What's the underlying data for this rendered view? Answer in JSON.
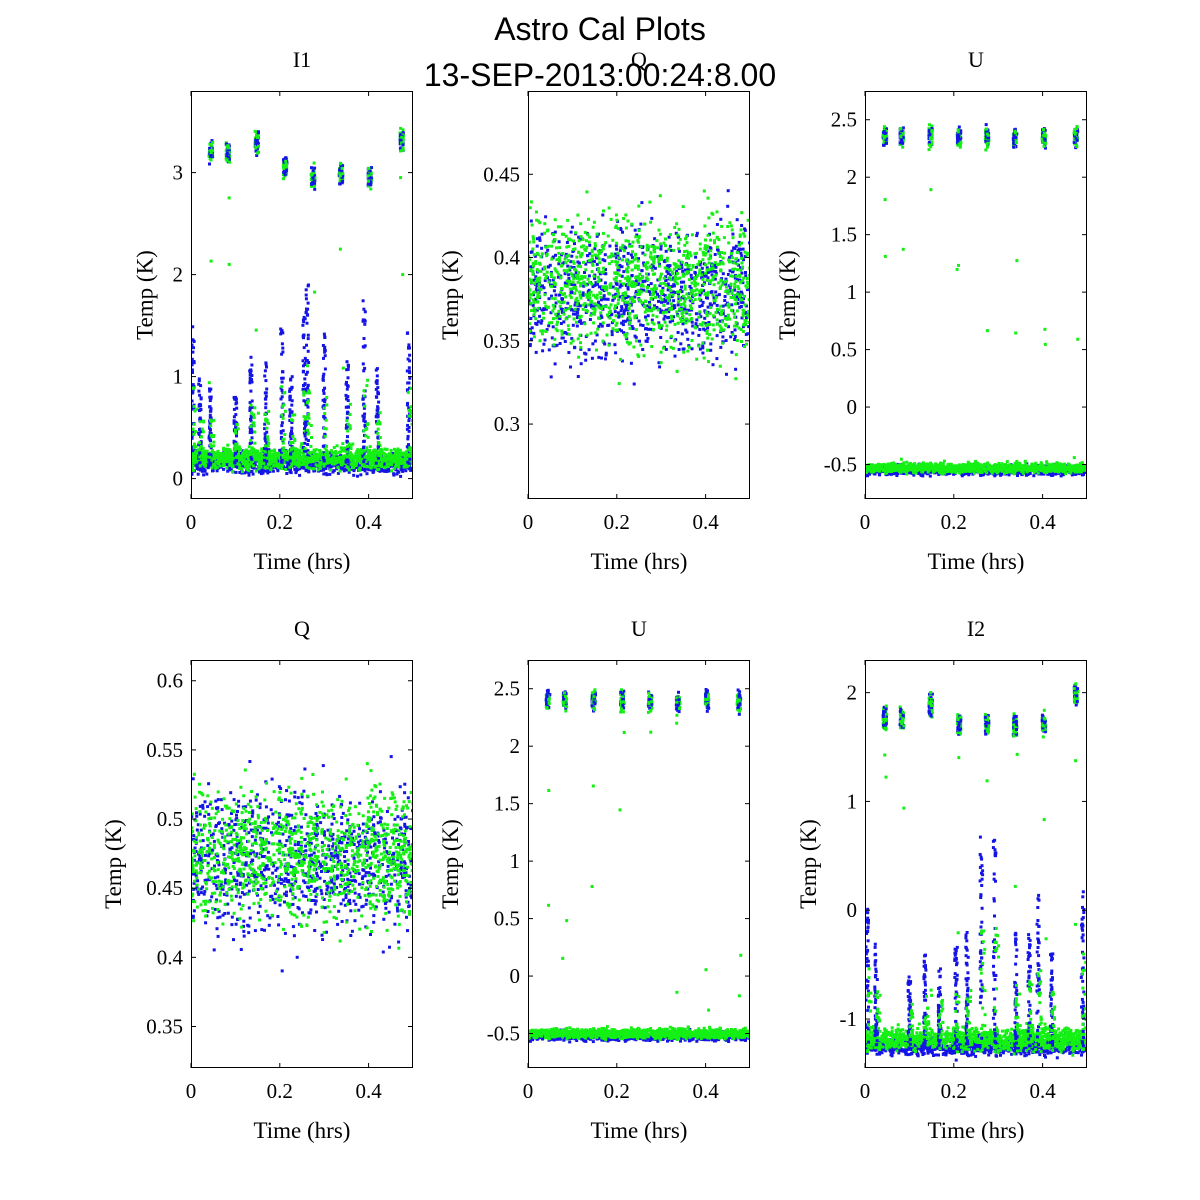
{
  "figure": {
    "title": "Astro Cal Plots",
    "subtitle": "13-SEP-2013:00:24:8.00",
    "colors": {
      "series_a": "#1414e6",
      "series_b": "#14f014",
      "axes": "#000000",
      "background": "#ffffff"
    }
  },
  "chart_data": [
    {
      "type": "scatter",
      "title": "I1",
      "xlabel": "Time (hrs)",
      "ylabel": "Temp (K)",
      "xlim": [
        0,
        0.5
      ],
      "ylim": [
        -0.2,
        3.8
      ],
      "xticks": [
        0,
        0.2,
        0.4
      ],
      "xtick_labels": [
        "0",
        "0.2",
        "0.4"
      ],
      "yticks": [
        0,
        1,
        2,
        3
      ],
      "ytick_labels": [
        "0",
        "1",
        "2",
        "3"
      ],
      "legend": "none",
      "pattern": {
        "base": 0.15,
        "noise": 0.1,
        "base_b": 0.2,
        "noise_b": 0.1,
        "cal_times": [
          0.045,
          0.083,
          0.148,
          0.212,
          0.275,
          0.338,
          0.403,
          0.475
        ],
        "cal_levels": [
          3.2,
          3.2,
          3.3,
          3.05,
          2.95,
          2.98,
          2.95,
          3.3
        ],
        "cal_spread": 0.1,
        "spikes": [
          [
            0.005,
            1.5
          ],
          [
            0.02,
            1.0
          ],
          [
            0.043,
            0.9
          ],
          [
            0.1,
            0.8
          ],
          [
            0.135,
            1.2
          ],
          [
            0.168,
            1.2
          ],
          [
            0.205,
            1.5
          ],
          [
            0.225,
            1.0
          ],
          [
            0.255,
            1.6
          ],
          [
            0.262,
            1.95
          ],
          [
            0.3,
            1.45
          ],
          [
            0.352,
            1.2
          ],
          [
            0.39,
            1.75
          ],
          [
            0.42,
            1.1
          ],
          [
            0.49,
            1.45
          ]
        ]
      }
    },
    {
      "type": "scatter",
      "title": "Q",
      "xlabel": "Time (hrs)",
      "ylabel": "Temp (K)",
      "xlim": [
        0,
        0.5
      ],
      "ylim": [
        0.255,
        0.5
      ],
      "xticks": [
        0,
        0.2,
        0.4
      ],
      "xtick_labels": [
        "0",
        "0.2",
        "0.4"
      ],
      "yticks": [
        0.3,
        0.35,
        0.4,
        0.45
      ],
      "ytick_labels": [
        "0.3",
        "0.35",
        "0.4",
        "0.45"
      ],
      "legend": "none",
      "pattern": {
        "base": 0.38,
        "noise": 0.04,
        "base_b": 0.385,
        "noise_b": 0.038
      }
    },
    {
      "type": "scatter",
      "title": "U",
      "xlabel": "Time (hrs)",
      "ylabel": "Temp (K)",
      "xlim": [
        0,
        0.5
      ],
      "ylim": [
        -0.8,
        2.75
      ],
      "xticks": [
        0,
        0.2,
        0.4
      ],
      "xtick_labels": [
        "0",
        "0.2",
        "0.4"
      ],
      "yticks": [
        -0.5,
        0,
        0.5,
        1,
        1.5,
        2,
        2.5
      ],
      "ytick_labels": [
        "-0.5",
        "0",
        "0.5",
        "1",
        "1.5",
        "2",
        "2.5"
      ],
      "legend": "none",
      "pattern": {
        "base": -0.55,
        "noise": 0.04,
        "base_b": -0.53,
        "noise_b": 0.04,
        "cal_times": [
          0.045,
          0.083,
          0.148,
          0.212,
          0.275,
          0.338,
          0.403,
          0.475
        ],
        "cal_levels": [
          2.35,
          2.35,
          2.35,
          2.35,
          2.35,
          2.33,
          2.35,
          2.35
        ],
        "cal_spread": 0.08
      }
    },
    {
      "type": "scatter",
      "title": "Q",
      "xlabel": "Time (hrs)",
      "ylabel": "Temp (K)",
      "xlim": [
        0,
        0.5
      ],
      "ylim": [
        0.32,
        0.615
      ],
      "xticks": [
        0,
        0.2,
        0.4
      ],
      "xtick_labels": [
        "0",
        "0.2",
        "0.4"
      ],
      "yticks": [
        0.35,
        0.4,
        0.45,
        0.5,
        0.55,
        0.6
      ],
      "ytick_labels": [
        "0.35",
        "0.4",
        "0.45",
        "0.5",
        "0.55",
        "0.6"
      ],
      "legend": "none",
      "pattern": {
        "base": 0.47,
        "noise": 0.05,
        "base_b": 0.475,
        "noise_b": 0.045
      }
    },
    {
      "type": "scatter",
      "title": "U",
      "xlabel": "Time (hrs)",
      "ylabel": "Temp (K)",
      "xlim": [
        0,
        0.5
      ],
      "ylim": [
        -0.8,
        2.75
      ],
      "xticks": [
        0,
        0.2,
        0.4
      ],
      "xtick_labels": [
        "0",
        "0.2",
        "0.4"
      ],
      "yticks": [
        -0.5,
        0,
        0.5,
        1,
        1.5,
        2,
        2.5
      ],
      "ytick_labels": [
        "-0.5",
        "0",
        "0.5",
        "1",
        "1.5",
        "2",
        "2.5"
      ],
      "legend": "none",
      "pattern": {
        "base": -0.52,
        "noise": 0.04,
        "base_b": -0.5,
        "noise_b": 0.04,
        "cal_times": [
          0.045,
          0.083,
          0.148,
          0.212,
          0.275,
          0.338,
          0.403,
          0.475
        ],
        "cal_levels": [
          2.4,
          2.4,
          2.4,
          2.4,
          2.4,
          2.38,
          2.4,
          2.4
        ],
        "cal_spread": 0.08
      }
    },
    {
      "type": "scatter",
      "title": "I2",
      "xlabel": "Time (hrs)",
      "ylabel": "Temp (K)",
      "xlim": [
        0,
        0.5
      ],
      "ylim": [
        -1.45,
        2.3
      ],
      "xticks": [
        0,
        0.2,
        0.4
      ],
      "xtick_labels": [
        "0",
        "0.2",
        "0.4"
      ],
      "yticks": [
        -1,
        0,
        1,
        2
      ],
      "ytick_labels": [
        "-1",
        "0",
        "1",
        "2"
      ],
      "legend": "none",
      "pattern": {
        "base": -1.25,
        "noise": 0.08,
        "base_b": -1.18,
        "noise_b": 0.1,
        "cal_times": [
          0.045,
          0.083,
          0.148,
          0.212,
          0.275,
          0.338,
          0.403,
          0.475
        ],
        "cal_levels": [
          1.75,
          1.75,
          1.9,
          1.7,
          1.7,
          1.7,
          1.7,
          2.0
        ],
        "cal_spread": 0.1,
        "spikes": [
          [
            0.005,
            0.1
          ],
          [
            0.025,
            -0.3
          ],
          [
            0.1,
            -0.6
          ],
          [
            0.135,
            -0.4
          ],
          [
            0.168,
            -0.5
          ],
          [
            0.205,
            -0.3
          ],
          [
            0.23,
            -0.2
          ],
          [
            0.262,
            0.7
          ],
          [
            0.292,
            0.7
          ],
          [
            0.34,
            -0.2
          ],
          [
            0.37,
            -0.2
          ],
          [
            0.39,
            0.2
          ],
          [
            0.42,
            -0.4
          ],
          [
            0.49,
            0.25
          ]
        ]
      }
    }
  ]
}
